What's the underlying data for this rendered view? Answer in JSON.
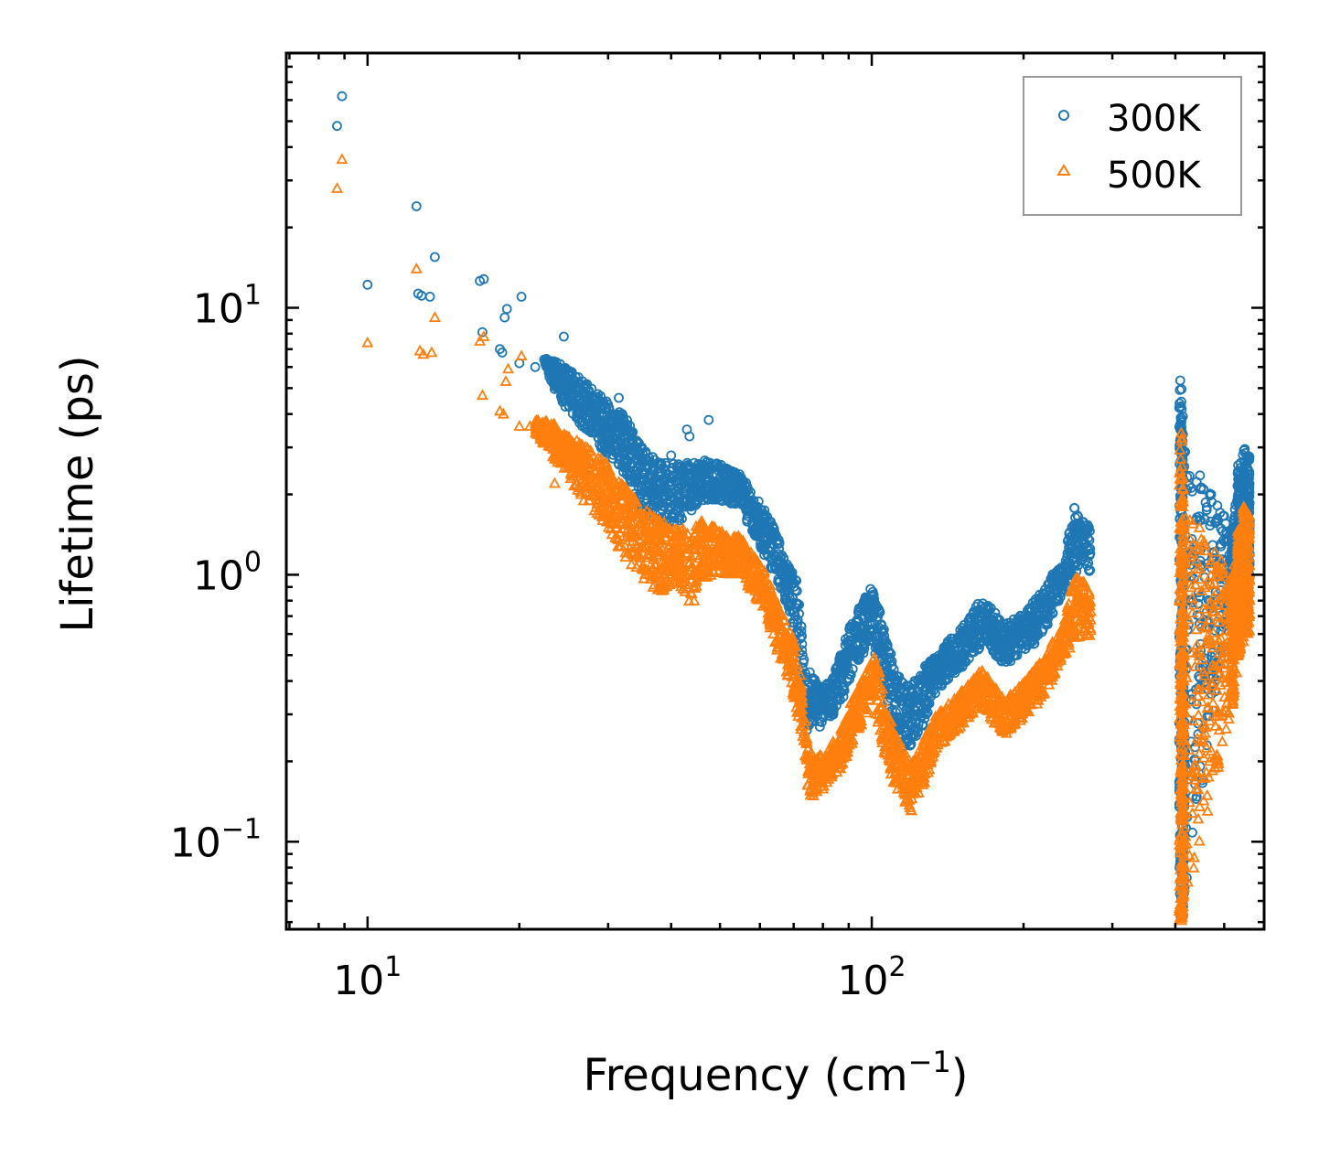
{
  "chart_data": {
    "type": "scatter",
    "title": "",
    "xlabel": "Frequency (cm",
    "xlabel_sup": "−1",
    "xlabel_suffix": ")",
    "ylabel": "Lifetime (ps)",
    "xscale": "log",
    "yscale": "log",
    "xlim": [
      6.9,
      600
    ],
    "ylim": [
      0.047,
      90
    ],
    "x_major_ticks": [
      {
        "value": 10,
        "base": "10",
        "exp": "1"
      },
      {
        "value": 100,
        "base": "10",
        "exp": "2"
      }
    ],
    "y_major_ticks": [
      {
        "value": 0.1,
        "base": "10",
        "exp": "−1"
      },
      {
        "value": 1,
        "base": "10",
        "exp": "0"
      },
      {
        "value": 10,
        "base": "10",
        "exp": "1"
      }
    ],
    "legend_position": "top-right",
    "series": [
      {
        "name": "300K",
        "marker": "circle",
        "color": "#1f77b4",
        "points": [
          [
            8.7,
            48
          ],
          [
            8.9,
            62
          ],
          [
            10.0,
            12.2
          ],
          [
            12.5,
            24
          ],
          [
            12.6,
            11.3
          ],
          [
            12.8,
            11.1
          ],
          [
            13.3,
            11.0
          ],
          [
            13.6,
            15.5
          ],
          [
            16.7,
            12.6
          ],
          [
            17.0,
            12.8
          ],
          [
            16.9,
            8.1
          ],
          [
            18.3,
            7.0
          ],
          [
            18.5,
            6.8
          ],
          [
            18.7,
            9.2
          ],
          [
            18.9,
            9.9
          ],
          [
            20.2,
            11.0
          ],
          [
            20.0,
            6.2
          ],
          [
            21.5,
            6.0
          ],
          [
            22.4,
            6.4
          ],
          [
            23.0,
            5.8
          ],
          [
            24.5,
            7.8
          ],
          [
            24.0,
            5.5
          ],
          [
            25.5,
            5.2
          ],
          [
            27.8,
            4.0
          ],
          [
            29.5,
            3.6
          ],
          [
            31.5,
            4.6
          ],
          [
            32.0,
            4.0
          ],
          [
            35.0,
            3.0
          ],
          [
            38.0,
            2.6
          ],
          [
            40.0,
            2.8
          ],
          [
            43.0,
            3.5
          ],
          [
            43.5,
            3.3
          ],
          [
            47.5,
            3.8
          ],
          [
            45.0,
            2.2
          ],
          [
            50.0,
            2.3
          ],
          [
            55.0,
            2.2
          ]
        ],
        "band_envelope": [
          [
            22.5,
            6.0,
            6.5
          ],
          [
            24,
            4.5,
            6.2
          ],
          [
            26,
            3.8,
            5.6
          ],
          [
            28,
            3.2,
            5.0
          ],
          [
            30,
            2.8,
            4.4
          ],
          [
            33,
            2.3,
            3.9
          ],
          [
            35,
            1.6,
            3.0
          ],
          [
            38,
            1.5,
            2.7
          ],
          [
            42,
            1.6,
            2.6
          ],
          [
            46,
            1.9,
            2.7
          ],
          [
            50,
            1.9,
            2.6
          ],
          [
            55,
            1.8,
            2.4
          ],
          [
            58,
            1.4,
            2.0
          ],
          [
            61,
            1.2,
            1.8
          ],
          [
            65,
            0.95,
            1.4
          ],
          [
            68,
            0.75,
            1.1
          ],
          [
            71,
            0.55,
            0.95
          ],
          [
            74,
            0.24,
            0.45
          ],
          [
            77,
            0.28,
            0.42
          ],
          [
            80,
            0.26,
            0.38
          ],
          [
            84,
            0.3,
            0.42
          ],
          [
            88,
            0.35,
            0.55
          ],
          [
            92,
            0.45,
            0.7
          ],
          [
            96,
            0.5,
            0.8
          ],
          [
            100,
            0.55,
            0.9
          ],
          [
            103,
            0.45,
            0.78
          ],
          [
            107,
            0.32,
            0.58
          ],
          [
            111,
            0.25,
            0.45
          ],
          [
            115,
            0.23,
            0.4
          ],
          [
            119,
            0.22,
            0.38
          ],
          [
            124,
            0.25,
            0.42
          ],
          [
            128,
            0.28,
            0.46
          ],
          [
            134,
            0.36,
            0.5
          ],
          [
            140,
            0.4,
            0.55
          ],
          [
            146,
            0.42,
            0.6
          ],
          [
            152,
            0.45,
            0.65
          ],
          [
            158,
            0.5,
            0.72
          ],
          [
            164,
            0.52,
            0.8
          ],
          [
            170,
            0.55,
            0.78
          ],
          [
            176,
            0.5,
            0.72
          ],
          [
            184,
            0.45,
            0.65
          ],
          [
            192,
            0.48,
            0.7
          ],
          [
            200,
            0.52,
            0.72
          ],
          [
            210,
            0.55,
            0.8
          ],
          [
            220,
            0.62,
            0.88
          ],
          [
            228,
            0.7,
            1.0
          ],
          [
            240,
            0.85,
            1.1
          ],
          [
            252,
            1.0,
            1.8
          ],
          [
            262,
            1.1,
            1.6
          ],
          [
            272,
            1.0,
            1.5
          ],
          [
            410,
            0.06,
            5.6
          ],
          [
            412,
            0.05,
            4.0
          ],
          [
            414,
            0.06,
            3.0
          ],
          [
            520,
            0.75,
            1.5
          ],
          [
            535,
            0.9,
            2.6
          ],
          [
            548,
            0.9,
            3.0
          ],
          [
            558,
            0.95,
            2.8
          ]
        ]
      },
      {
        "name": "500K",
        "marker": "triangle",
        "color": "#ff7f0e",
        "points": [
          [
            8.7,
            28
          ],
          [
            8.9,
            36
          ],
          [
            10.0,
            7.4
          ],
          [
            12.5,
            14.0
          ],
          [
            12.7,
            6.9
          ],
          [
            12.9,
            6.7
          ],
          [
            13.4,
            6.8
          ],
          [
            13.6,
            9.2
          ],
          [
            16.7,
            7.5
          ],
          [
            17.0,
            7.8
          ],
          [
            16.9,
            4.7
          ],
          [
            18.3,
            4.1
          ],
          [
            18.6,
            4.0
          ],
          [
            18.8,
            5.3
          ],
          [
            19.0,
            5.9
          ],
          [
            20.2,
            6.6
          ],
          [
            20.0,
            3.6
          ],
          [
            21.0,
            3.6
          ],
          [
            23.5,
            2.2
          ],
          [
            27.0,
            2.4
          ],
          [
            30.0,
            2.3
          ]
        ],
        "band_envelope": [
          [
            21.5,
            3.4,
            3.8
          ],
          [
            23,
            2.8,
            3.8
          ],
          [
            24.5,
            2.5,
            3.4
          ],
          [
            26,
            2.0,
            3.2
          ],
          [
            28,
            1.7,
            2.9
          ],
          [
            30,
            1.5,
            2.6
          ],
          [
            32,
            1.2,
            2.2
          ],
          [
            35,
            0.95,
            1.8
          ],
          [
            38,
            0.85,
            1.6
          ],
          [
            41,
            0.95,
            1.5
          ],
          [
            44,
            0.75,
            1.5
          ],
          [
            46,
            0.95,
            1.6
          ],
          [
            49,
            1.0,
            1.5
          ],
          [
            52,
            1.0,
            1.4
          ],
          [
            55,
            1.0,
            1.4
          ],
          [
            58,
            0.85,
            1.2
          ],
          [
            61,
            0.75,
            1.05
          ],
          [
            64,
            0.55,
            0.85
          ],
          [
            67,
            0.45,
            0.7
          ],
          [
            70,
            0.35,
            0.6
          ],
          [
            72,
            0.25,
            0.45
          ],
          [
            75,
            0.14,
            0.22
          ],
          [
            78,
            0.15,
            0.21
          ],
          [
            82,
            0.16,
            0.22
          ],
          [
            86,
            0.18,
            0.26
          ],
          [
            90,
            0.22,
            0.32
          ],
          [
            94,
            0.26,
            0.38
          ],
          [
            98,
            0.3,
            0.45
          ],
          [
            101,
            0.32,
            0.5
          ],
          [
            104,
            0.26,
            0.42
          ],
          [
            107,
            0.19,
            0.32
          ],
          [
            111,
            0.16,
            0.26
          ],
          [
            116,
            0.14,
            0.22
          ],
          [
            120,
            0.13,
            0.2
          ],
          [
            124,
            0.15,
            0.22
          ],
          [
            128,
            0.17,
            0.25
          ],
          [
            134,
            0.22,
            0.3
          ],
          [
            140,
            0.24,
            0.32
          ],
          [
            146,
            0.25,
            0.35
          ],
          [
            152,
            0.27,
            0.38
          ],
          [
            158,
            0.3,
            0.4
          ],
          [
            164,
            0.32,
            0.45
          ],
          [
            170,
            0.3,
            0.42
          ],
          [
            176,
            0.27,
            0.38
          ],
          [
            184,
            0.25,
            0.34
          ],
          [
            192,
            0.27,
            0.37
          ],
          [
            200,
            0.29,
            0.4
          ],
          [
            210,
            0.32,
            0.44
          ],
          [
            220,
            0.35,
            0.5
          ],
          [
            228,
            0.4,
            0.56
          ],
          [
            240,
            0.5,
            0.64
          ],
          [
            252,
            0.55,
            1.0
          ],
          [
            262,
            0.6,
            0.95
          ],
          [
            272,
            0.55,
            0.9
          ],
          [
            410,
            0.05,
            3.4
          ],
          [
            412,
            0.05,
            2.4
          ],
          [
            414,
            0.05,
            1.9
          ],
          [
            520,
            0.32,
            1.0
          ],
          [
            535,
            0.5,
            1.5
          ],
          [
            548,
            0.55,
            1.8
          ],
          [
            558,
            0.6,
            1.7
          ]
        ]
      }
    ]
  }
}
